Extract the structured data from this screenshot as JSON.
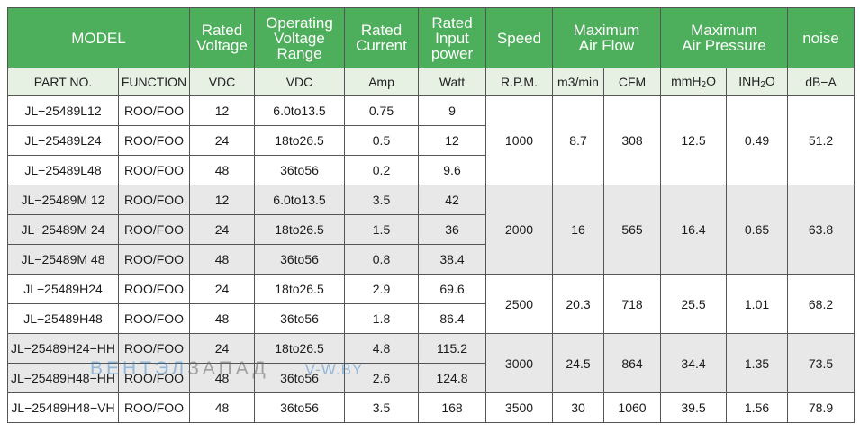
{
  "header": {
    "model": "MODEL",
    "rated_voltage": "Rated\nVoltage",
    "operating_voltage": "Operating\nVoltage\nRange",
    "rated_current": "Rated\nCurrent",
    "rated_input_power": "Rated\nInput\npower",
    "speed": "Speed",
    "max_air_flow": "Maximum\nAir Flow",
    "max_air_pressure": "Maximum\nAir Pressure",
    "noise": "noise"
  },
  "units": {
    "part_no": "PART NO.",
    "function": "FUNCTION",
    "rated_voltage": "VDC",
    "operating_voltage": "VDC",
    "rated_current": "Amp",
    "input_power": "Watt",
    "speed": "R.P.M.",
    "flow_m3": "m3/min",
    "flow_cfm": "CFM",
    "pressure_mm": "mmH",
    "pressure_mm_sub": "2",
    "pressure_mm_tail": "O",
    "pressure_in": "INH",
    "pressure_in_sub": "2",
    "pressure_in_tail": "O",
    "noise": "dB−A"
  },
  "rows": [
    {
      "part": "JL−25489L12",
      "function": "ROO/FOO",
      "voltage": "12",
      "range": "6.0to13.5",
      "current": "0.75",
      "power": "9"
    },
    {
      "part": "JL−25489L24",
      "function": "ROO/FOO",
      "voltage": "24",
      "range": "18to26.5",
      "current": "0.5",
      "power": "12"
    },
    {
      "part": "JL−25489L48",
      "function": "ROO/FOO",
      "voltage": "48",
      "range": "36to56",
      "current": "0.2",
      "power": "9.6"
    },
    {
      "part": "JL−25489M 12",
      "function": "ROO/FOO",
      "voltage": "12",
      "range": "6.0to13.5",
      "current": "3.5",
      "power": "42"
    },
    {
      "part": "JL−25489M 24",
      "function": "ROO/FOO",
      "voltage": "24",
      "range": "18to26.5",
      "current": "1.5",
      "power": "36"
    },
    {
      "part": "JL−25489M 48",
      "function": "ROO/FOO",
      "voltage": "48",
      "range": "36to56",
      "current": "0.8",
      "power": "38.4"
    },
    {
      "part": "JL−25489H24",
      "function": "ROO/FOO",
      "voltage": "24",
      "range": "18to26.5",
      "current": "2.9",
      "power": "69.6"
    },
    {
      "part": "JL−25489H48",
      "function": "ROO/FOO",
      "voltage": "48",
      "range": "36to56",
      "current": "1.8",
      "power": "86.4"
    },
    {
      "part": "JL−25489H24−HH",
      "function": "ROO/FOO",
      "voltage": "24",
      "range": "18to26.5",
      "current": "4.8",
      "power": "115.2"
    },
    {
      "part": "JL−25489H48−HH",
      "function": "ROO/FOO",
      "voltage": "48",
      "range": "36to56",
      "current": "2.6",
      "power": "124.8"
    },
    {
      "part": "JL−25489H48−VH",
      "function": "ROO/FOO",
      "voltage": "48",
      "range": "36to56",
      "current": "3.5",
      "power": "168"
    }
  ],
  "groups": [
    {
      "speed": "1000",
      "m3min": "8.7",
      "cfm": "308",
      "mmh2o": "12.5",
      "inh2o": "0.49",
      "noise": "51.2"
    },
    {
      "speed": "2000",
      "m3min": "16",
      "cfm": "565",
      "mmh2o": "16.4",
      "inh2o": "0.65",
      "noise": "63.8"
    },
    {
      "speed": "2500",
      "m3min": "20.3",
      "cfm": "718",
      "mmh2o": "25.5",
      "inh2o": "1.01",
      "noise": "68.2"
    },
    {
      "speed": "3000",
      "m3min": "24.5",
      "cfm": "864",
      "mmh2o": "34.4",
      "inh2o": "1.35",
      "noise": "73.5"
    },
    {
      "speed": "3500",
      "m3min": "30",
      "cfm": "1060",
      "mmh2o": "39.5",
      "inh2o": "1.56",
      "noise": "78.9"
    }
  ],
  "watermark": {
    "brand_a": "ВЕНТЭЛ",
    "brand_b": "ЗАПАД",
    "site": "V-W.BY"
  },
  "colors": {
    "header_green": "#4dae5c",
    "units_band": "#e6f1e3",
    "grey_band": "#e8e8e8"
  }
}
